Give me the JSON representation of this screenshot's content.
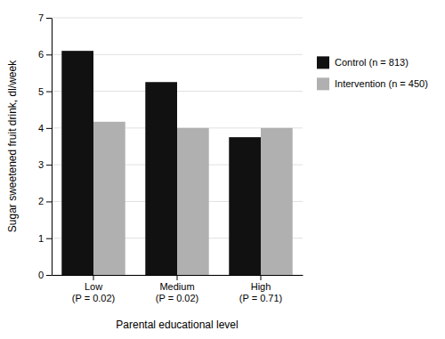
{
  "chart_data": {
    "type": "bar",
    "categories": [
      "Low\n(P = 0.02)",
      "Medium\n(P = 0.02)",
      "High\n(P = 0.71)"
    ],
    "series": [
      {
        "name": "Control (n = 813)",
        "color": "#111111",
        "values": [
          6.1,
          5.25,
          3.75
        ]
      },
      {
        "name": "Intervention (n = 450)",
        "color": "#b0b0b0",
        "values": [
          4.17,
          4.0,
          4.0
        ]
      }
    ],
    "xlabel": "Parental educational level",
    "ylabel": "Sugar sweetened fruit drink, dl/week",
    "ylim": [
      0,
      7
    ],
    "yticks": [
      0,
      1,
      2,
      3,
      4,
      5,
      6,
      7
    ],
    "grid": true,
    "legend": "right"
  }
}
